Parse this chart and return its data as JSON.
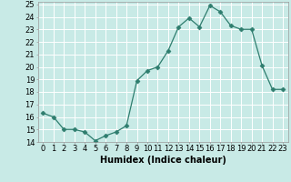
{
  "x": [
    0,
    1,
    2,
    3,
    4,
    5,
    6,
    7,
    8,
    9,
    10,
    11,
    12,
    13,
    14,
    15,
    16,
    17,
    18,
    19,
    20,
    21,
    22,
    23
  ],
  "y": [
    16.3,
    16.0,
    15.0,
    15.0,
    14.8,
    14.1,
    14.5,
    14.8,
    15.3,
    18.9,
    19.7,
    20.0,
    21.3,
    23.2,
    23.9,
    23.2,
    24.9,
    24.4,
    23.3,
    23.0,
    23.0,
    20.1,
    18.2,
    18.2
  ],
  "line_color": "#2e7d6e",
  "marker": "D",
  "marker_size": 2.5,
  "bg_color": "#c8eae6",
  "grid_color": "#ffffff",
  "xlabel": "Humidex (Indice chaleur)",
  "xlim": [
    -0.5,
    23.5
  ],
  "ylim": [
    14,
    25.2
  ],
  "xticks": [
    0,
    1,
    2,
    3,
    4,
    5,
    6,
    7,
    8,
    9,
    10,
    11,
    12,
    13,
    14,
    15,
    16,
    17,
    18,
    19,
    20,
    21,
    22,
    23
  ],
  "yticks": [
    14,
    15,
    16,
    17,
    18,
    19,
    20,
    21,
    22,
    23,
    24,
    25
  ],
  "xlabel_fontsize": 7,
  "tick_fontsize": 6
}
